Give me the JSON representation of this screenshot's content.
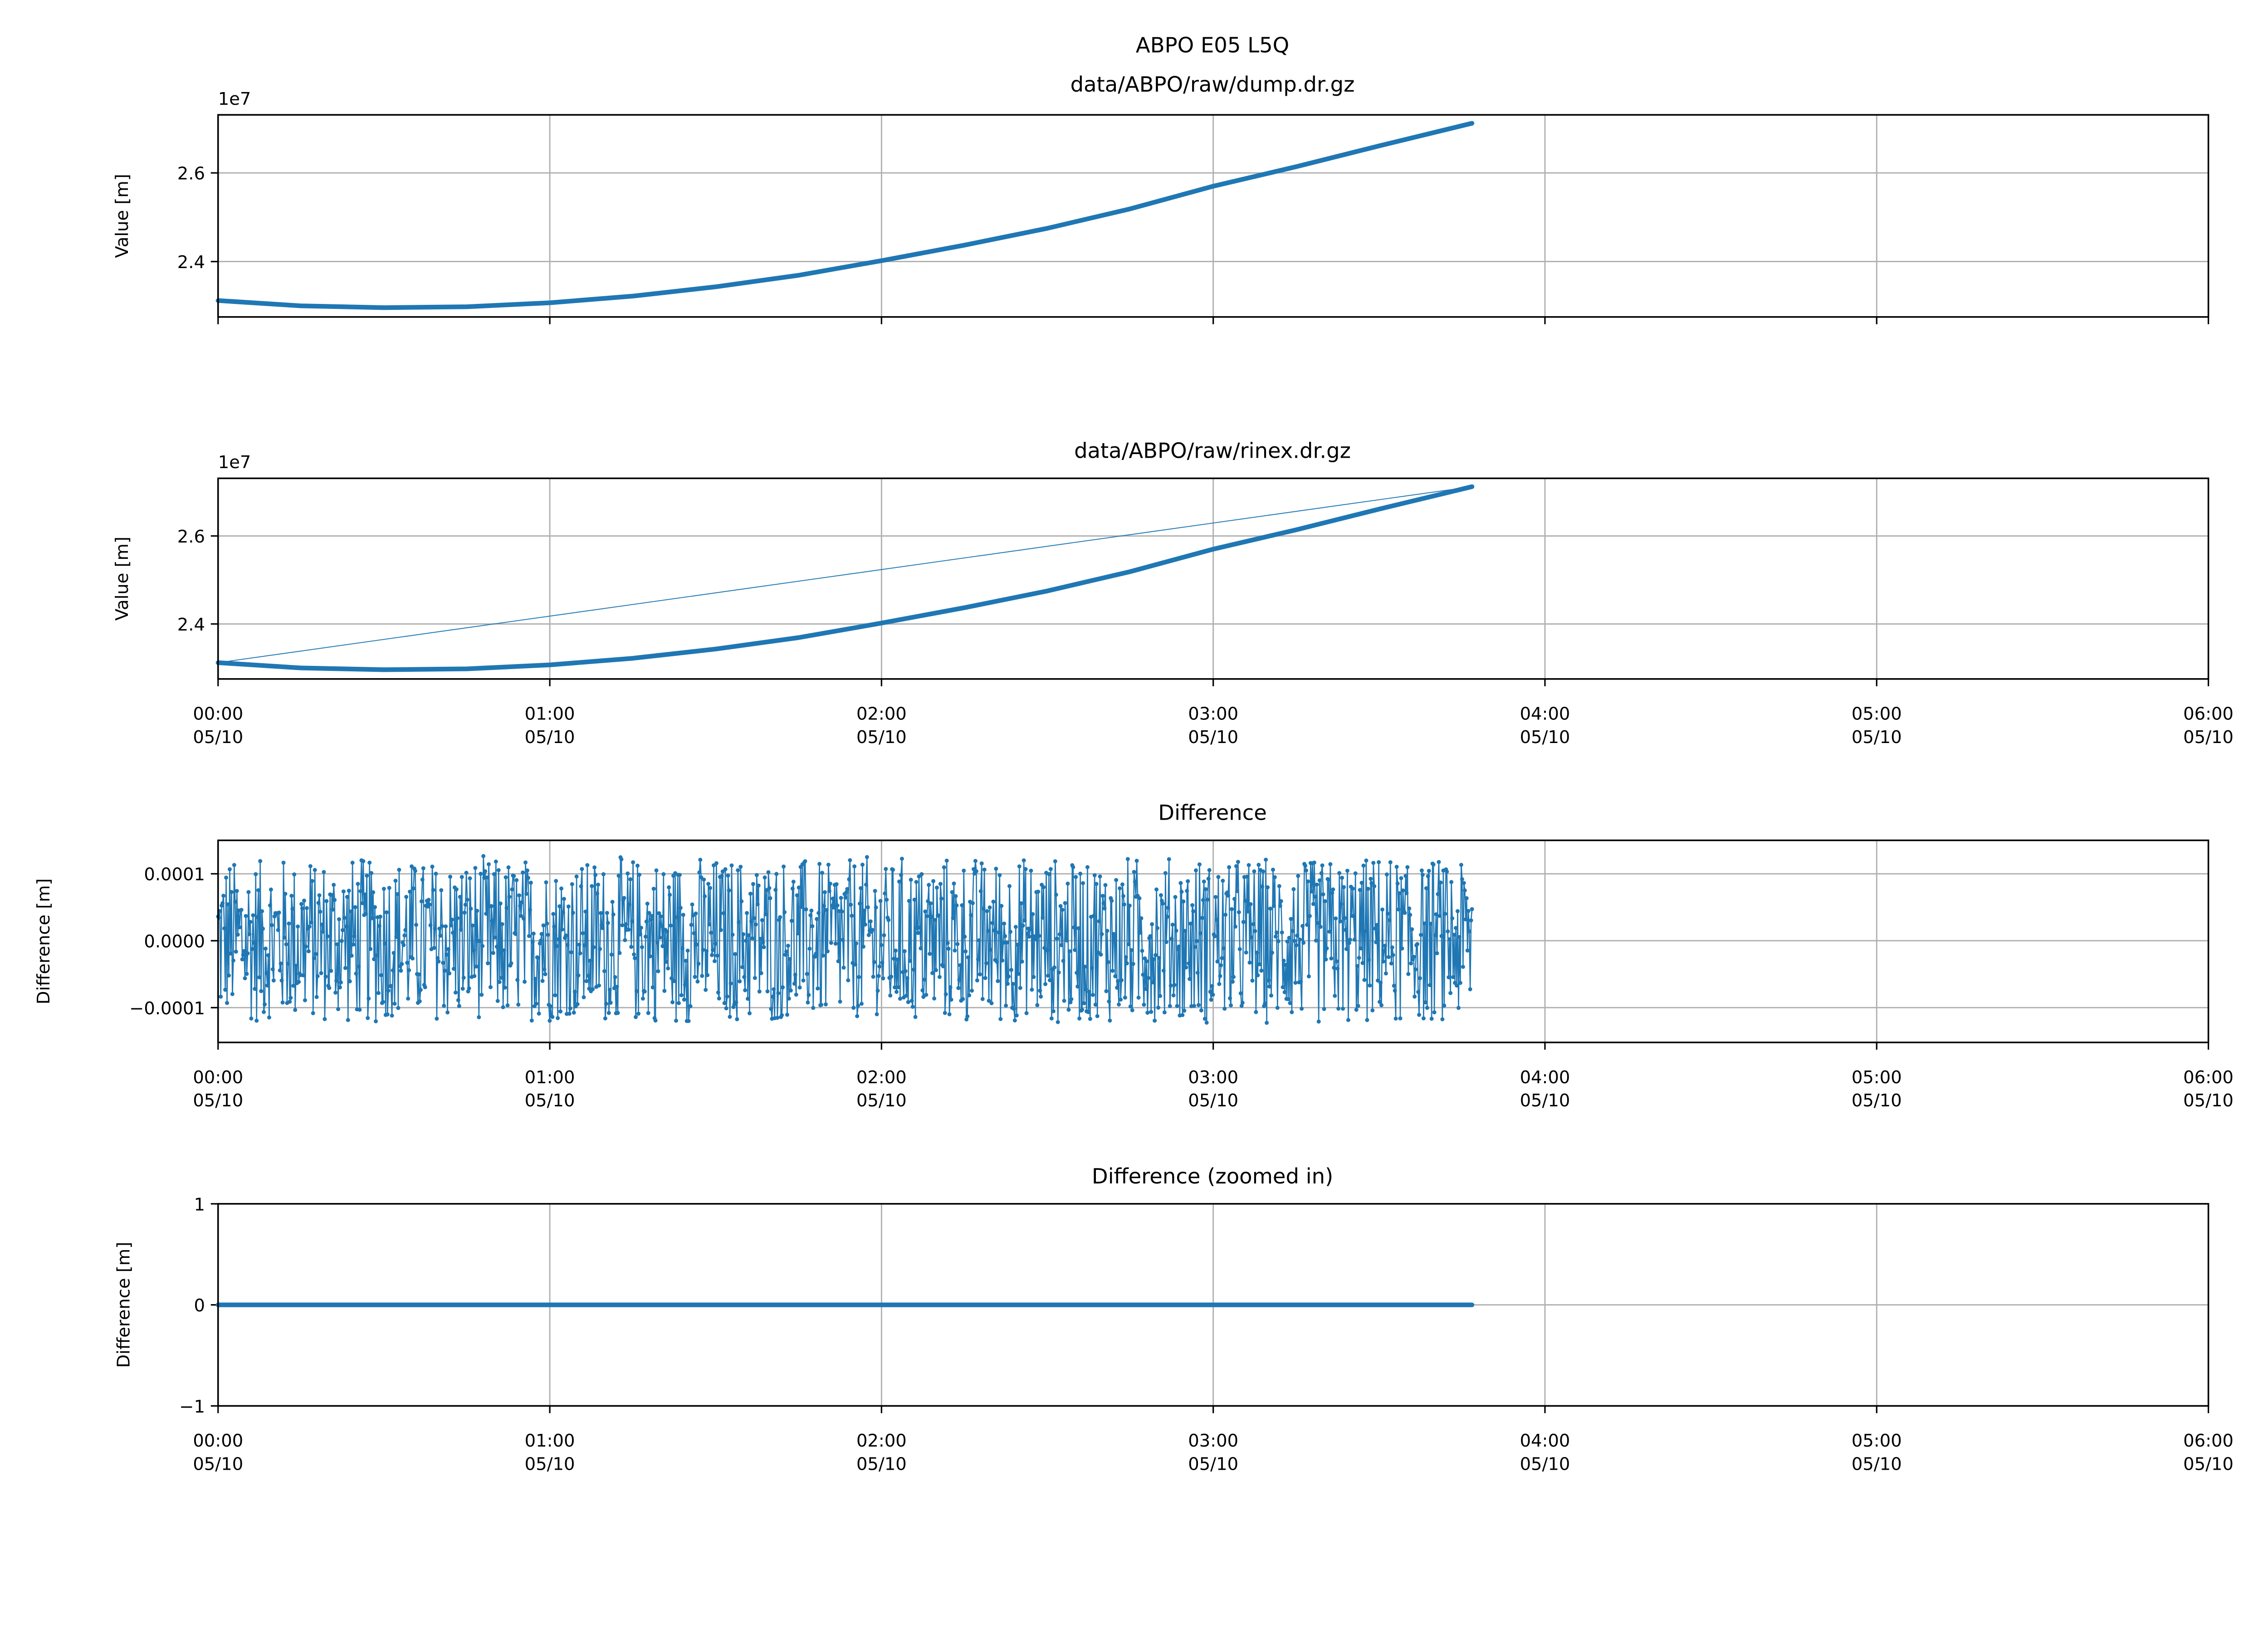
{
  "chart_data": [
    {
      "type": "line",
      "title": "ABPO E05 L5Q",
      "subtitle": "data/ABPO/raw/dump.dr.gz",
      "ylabel": "Value [m]",
      "y_offset_label": "1e7",
      "xlim_hours": [
        0,
        6
      ],
      "ylim": [
        2.275,
        2.731
      ],
      "yticks": [
        "2.4",
        "2.6"
      ],
      "ytick_values": [
        2.4,
        2.6
      ],
      "xtick_labels_shown": false,
      "grid": true,
      "color": "#1f77b4",
      "x_hours": [
        0,
        0.25,
        0.5,
        0.75,
        1,
        1.25,
        1.5,
        1.75,
        2,
        2.25,
        2.5,
        2.75,
        3,
        3.25,
        3.5,
        3.78
      ],
      "values": [
        2.312,
        2.3,
        2.296,
        2.298,
        2.307,
        2.322,
        2.343,
        2.369,
        2.402,
        2.437,
        2.475,
        2.519,
        2.57,
        2.614,
        2.661,
        2.712
      ]
    },
    {
      "type": "line",
      "title": "data/ABPO/raw/rinex.dr.gz",
      "ylabel": "Value [m]",
      "y_offset_label": "1e7",
      "xlim_hours": [
        0,
        6
      ],
      "ylim": [
        2.275,
        2.731
      ],
      "yticks": [
        "2.4",
        "2.6"
      ],
      "ytick_values": [
        2.4,
        2.6
      ],
      "grid": true,
      "color": "#1f77b4",
      "x_hours": [
        0,
        0.25,
        0.5,
        0.75,
        1,
        1.25,
        1.5,
        1.75,
        2,
        2.25,
        2.5,
        2.75,
        3,
        3.25,
        3.5,
        3.78
      ],
      "values": [
        2.312,
        2.3,
        2.296,
        2.298,
        2.307,
        2.322,
        2.343,
        2.369,
        2.402,
        2.437,
        2.475,
        2.519,
        2.57,
        2.614,
        2.661,
        2.712
      ],
      "connector_line": {
        "from": [
          0,
          2.312
        ],
        "to": [
          3.78,
          2.712
        ]
      }
    },
    {
      "type": "scatter",
      "title": "Difference",
      "ylabel": "Difference [m]",
      "xlim_hours": [
        0,
        6
      ],
      "ylim": [
        -0.000152,
        0.00015
      ],
      "yticks": [
        "−0.0001",
        "0.0000",
        "0.0001"
      ],
      "ytick_values": [
        -0.0001,
        0,
        0.0001
      ],
      "grid": true,
      "color": "#1f77b4",
      "x_range_hours": [
        0,
        3.78
      ],
      "noise_amplitude": 0.00013
    },
    {
      "type": "line",
      "title": "Difference (zoomed in)",
      "ylabel": "Difference [m]",
      "xlim_hours": [
        0,
        6
      ],
      "ylim": [
        -1,
        1
      ],
      "yticks": [
        "−1",
        "0",
        "1"
      ],
      "ytick_values": [
        -1,
        0,
        1
      ],
      "grid": true,
      "color": "#1f77b4",
      "x_hours": [
        0,
        3.78
      ],
      "values": [
        0,
        0
      ]
    }
  ],
  "xticks": [
    {
      "time": "00:00",
      "date": "05/10"
    },
    {
      "time": "01:00",
      "date": "05/10"
    },
    {
      "time": "02:00",
      "date": "05/10"
    },
    {
      "time": "03:00",
      "date": "05/10"
    },
    {
      "time": "04:00",
      "date": "05/10"
    },
    {
      "time": "05:00",
      "date": "05/10"
    },
    {
      "time": "06:00",
      "date": "05/10"
    }
  ]
}
